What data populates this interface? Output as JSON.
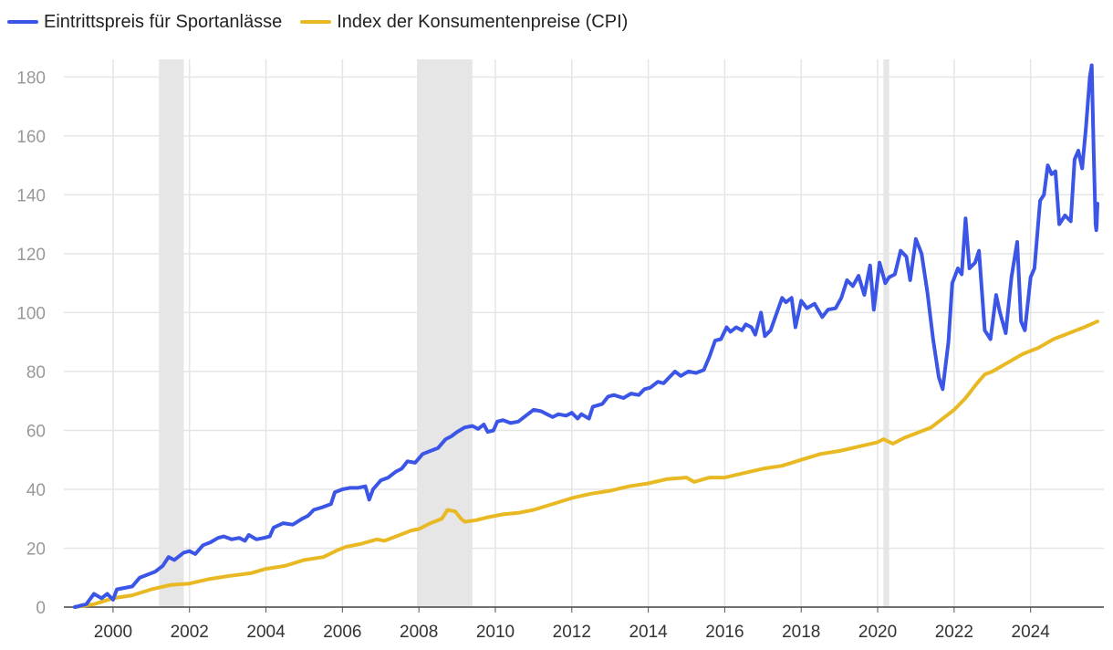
{
  "chart_data": {
    "type": "line",
    "title": "",
    "xlabel": "",
    "ylabel": "",
    "xlim": [
      1999.0,
      2025.75
    ],
    "ylim": [
      0,
      186
    ],
    "y_ticks": [
      0,
      20,
      40,
      60,
      80,
      100,
      120,
      140,
      160,
      180
    ],
    "y_tick_labels": [
      "0",
      "20",
      "40",
      "60",
      "80",
      "100",
      "120",
      "140",
      "160",
      "180"
    ],
    "x_ticks": [
      2000,
      2002,
      2004,
      2006,
      2008,
      2010,
      2012,
      2014,
      2016,
      2018,
      2020,
      2022,
      2024
    ],
    "x_tick_labels": [
      "2000",
      "2002",
      "2004",
      "2006",
      "2008",
      "2010",
      "2012",
      "2014",
      "2016",
      "2018",
      "2020",
      "2022",
      "2024"
    ],
    "grid": true,
    "legend_position": "top-left",
    "shaded_periods": [
      [
        2001.2,
        2001.85
      ],
      [
        2007.95,
        2009.4
      ],
      [
        2020.15,
        2020.3
      ]
    ],
    "series": [
      {
        "name": "Eintrittspreis für Sportanlässe",
        "color": "#3b55e6",
        "points": [
          [
            1999.0,
            0
          ],
          [
            1999.3,
            1
          ],
          [
            1999.5,
            4.5
          ],
          [
            1999.7,
            3
          ],
          [
            1999.85,
            4.5
          ],
          [
            2000.0,
            2.5
          ],
          [
            2000.1,
            6
          ],
          [
            2000.3,
            6.5
          ],
          [
            2000.5,
            7
          ],
          [
            2000.7,
            10
          ],
          [
            2000.9,
            11
          ],
          [
            2001.1,
            12
          ],
          [
            2001.3,
            14
          ],
          [
            2001.45,
            17
          ],
          [
            2001.6,
            16
          ],
          [
            2001.85,
            18.5
          ],
          [
            2002.0,
            19
          ],
          [
            2002.15,
            18
          ],
          [
            2002.35,
            21
          ],
          [
            2002.55,
            22
          ],
          [
            2002.75,
            23.5
          ],
          [
            2002.9,
            24
          ],
          [
            2003.1,
            23
          ],
          [
            2003.3,
            23.5
          ],
          [
            2003.45,
            22.5
          ],
          [
            2003.55,
            24.5
          ],
          [
            2003.75,
            23
          ],
          [
            2003.95,
            23.5
          ],
          [
            2004.1,
            24
          ],
          [
            2004.2,
            27
          ],
          [
            2004.45,
            28.5
          ],
          [
            2004.7,
            28
          ],
          [
            2004.95,
            30
          ],
          [
            2005.1,
            31
          ],
          [
            2005.25,
            33
          ],
          [
            2005.5,
            34
          ],
          [
            2005.7,
            35
          ],
          [
            2005.8,
            39
          ],
          [
            2006.0,
            40
          ],
          [
            2006.2,
            40.5
          ],
          [
            2006.4,
            40.5
          ],
          [
            2006.6,
            41
          ],
          [
            2006.7,
            36.5
          ],
          [
            2006.8,
            40
          ],
          [
            2007.0,
            43
          ],
          [
            2007.2,
            44
          ],
          [
            2007.4,
            46
          ],
          [
            2007.55,
            47
          ],
          [
            2007.7,
            49.5
          ],
          [
            2007.9,
            49
          ],
          [
            2008.1,
            52
          ],
          [
            2008.3,
            53
          ],
          [
            2008.5,
            54
          ],
          [
            2008.7,
            57
          ],
          [
            2008.85,
            58
          ],
          [
            2009.0,
            59.5
          ],
          [
            2009.2,
            61
          ],
          [
            2009.4,
            61.5
          ],
          [
            2009.55,
            60.5
          ],
          [
            2009.7,
            62
          ],
          [
            2009.8,
            59.5
          ],
          [
            2009.95,
            60
          ],
          [
            2010.05,
            63
          ],
          [
            2010.2,
            63.5
          ],
          [
            2010.4,
            62.5
          ],
          [
            2010.6,
            63
          ],
          [
            2010.8,
            65
          ],
          [
            2011.0,
            67
          ],
          [
            2011.2,
            66.5
          ],
          [
            2011.35,
            65.5
          ],
          [
            2011.5,
            64.5
          ],
          [
            2011.65,
            65.5
          ],
          [
            2011.85,
            65
          ],
          [
            2012.0,
            66
          ],
          [
            2012.15,
            64
          ],
          [
            2012.25,
            65.5
          ],
          [
            2012.45,
            64
          ],
          [
            2012.55,
            68
          ],
          [
            2012.8,
            69
          ],
          [
            2012.95,
            71.5
          ],
          [
            2013.1,
            72
          ],
          [
            2013.35,
            71
          ],
          [
            2013.55,
            72.5
          ],
          [
            2013.75,
            72
          ],
          [
            2013.9,
            74
          ],
          [
            2014.05,
            74.5
          ],
          [
            2014.25,
            76.5
          ],
          [
            2014.4,
            76
          ],
          [
            2014.55,
            78
          ],
          [
            2014.7,
            80
          ],
          [
            2014.85,
            78.5
          ],
          [
            2015.05,
            80
          ],
          [
            2015.25,
            79.5
          ],
          [
            2015.45,
            80.5
          ],
          [
            2015.6,
            85
          ],
          [
            2015.75,
            90.5
          ],
          [
            2015.9,
            91
          ],
          [
            2016.05,
            95
          ],
          [
            2016.15,
            93.5
          ],
          [
            2016.3,
            95
          ],
          [
            2016.45,
            94
          ],
          [
            2016.55,
            96
          ],
          [
            2016.7,
            95
          ],
          [
            2016.8,
            92.5
          ],
          [
            2016.95,
            100
          ],
          [
            2017.05,
            92
          ],
          [
            2017.2,
            94
          ],
          [
            2017.35,
            99.5
          ],
          [
            2017.5,
            105
          ],
          [
            2017.6,
            103.5
          ],
          [
            2017.75,
            105
          ],
          [
            2017.85,
            95
          ],
          [
            2018.0,
            104
          ],
          [
            2018.15,
            101.5
          ],
          [
            2018.35,
            103
          ],
          [
            2018.55,
            98.5
          ],
          [
            2018.7,
            101
          ],
          [
            2018.9,
            101.5
          ],
          [
            2019.05,
            105
          ],
          [
            2019.2,
            111
          ],
          [
            2019.35,
            109
          ],
          [
            2019.5,
            112.5
          ],
          [
            2019.65,
            106
          ],
          [
            2019.8,
            116
          ],
          [
            2019.9,
            101
          ],
          [
            2020.05,
            117
          ],
          [
            2020.2,
            110
          ],
          [
            2020.3,
            112
          ],
          [
            2020.45,
            113
          ],
          [
            2020.6,
            121
          ],
          [
            2020.75,
            119
          ],
          [
            2020.85,
            111
          ],
          [
            2021.0,
            125
          ],
          [
            2021.15,
            120
          ],
          [
            2021.3,
            107
          ],
          [
            2021.45,
            91
          ],
          [
            2021.6,
            78
          ],
          [
            2021.7,
            74
          ],
          [
            2021.85,
            90
          ],
          [
            2021.95,
            110
          ],
          [
            2022.1,
            115
          ],
          [
            2022.2,
            113
          ],
          [
            2022.3,
            132
          ],
          [
            2022.4,
            115
          ],
          [
            2022.55,
            117
          ],
          [
            2022.65,
            121
          ],
          [
            2022.8,
            94
          ],
          [
            2022.95,
            91
          ],
          [
            2023.1,
            106
          ],
          [
            2023.2,
            100
          ],
          [
            2023.35,
            93
          ],
          [
            2023.5,
            112
          ],
          [
            2023.65,
            124
          ],
          [
            2023.75,
            97
          ],
          [
            2023.85,
            94
          ],
          [
            2024.0,
            112
          ],
          [
            2024.1,
            115
          ],
          [
            2024.25,
            138
          ],
          [
            2024.35,
            140
          ],
          [
            2024.45,
            150
          ],
          [
            2024.55,
            147
          ],
          [
            2024.65,
            148
          ],
          [
            2024.75,
            130
          ],
          [
            2024.9,
            133
          ],
          [
            2025.05,
            131
          ],
          [
            2025.15,
            152
          ],
          [
            2025.25,
            155
          ],
          [
            2025.35,
            149
          ],
          [
            2025.45,
            163
          ],
          [
            2025.55,
            180
          ],
          [
            2025.6,
            184
          ],
          [
            2025.65,
            155
          ],
          [
            2025.7,
            130
          ],
          [
            2025.72,
            128
          ],
          [
            2025.73,
            130
          ],
          [
            2025.74,
            134
          ],
          [
            2025.75,
            137
          ]
        ]
      },
      {
        "name": "Index der Konsumentenpreise (CPI)",
        "color": "#e8b923",
        "points": [
          [
            1999.0,
            0
          ],
          [
            1999.5,
            1
          ],
          [
            2000.0,
            3
          ],
          [
            2000.5,
            4
          ],
          [
            2001.0,
            6
          ],
          [
            2001.5,
            7.5
          ],
          [
            2002.0,
            8
          ],
          [
            2002.5,
            9.5
          ],
          [
            2003.0,
            10.5
          ],
          [
            2003.3,
            11
          ],
          [
            2003.6,
            11.5
          ],
          [
            2004.0,
            13
          ],
          [
            2004.5,
            14
          ],
          [
            2005.0,
            16
          ],
          [
            2005.5,
            17
          ],
          [
            2005.9,
            19.5
          ],
          [
            2006.1,
            20.5
          ],
          [
            2006.5,
            21.5
          ],
          [
            2006.9,
            23
          ],
          [
            2007.1,
            22.5
          ],
          [
            2007.5,
            24.5
          ],
          [
            2007.8,
            26
          ],
          [
            2008.0,
            26.5
          ],
          [
            2008.3,
            28.5
          ],
          [
            2008.6,
            30
          ],
          [
            2008.75,
            33
          ],
          [
            2008.95,
            32.5
          ],
          [
            2009.1,
            30
          ],
          [
            2009.2,
            29
          ],
          [
            2009.5,
            29.5
          ],
          [
            2009.8,
            30.5
          ],
          [
            2010.2,
            31.5
          ],
          [
            2010.6,
            32
          ],
          [
            2011.0,
            33
          ],
          [
            2011.5,
            35
          ],
          [
            2012.0,
            37
          ],
          [
            2012.5,
            38.5
          ],
          [
            2013.0,
            39.5
          ],
          [
            2013.5,
            41
          ],
          [
            2014.0,
            42
          ],
          [
            2014.5,
            43.5
          ],
          [
            2015.0,
            44
          ],
          [
            2015.2,
            42.5
          ],
          [
            2015.6,
            44
          ],
          [
            2016.0,
            44
          ],
          [
            2016.5,
            45.5
          ],
          [
            2017.0,
            47
          ],
          [
            2017.5,
            48
          ],
          [
            2018.0,
            50
          ],
          [
            2018.5,
            52
          ],
          [
            2019.0,
            53
          ],
          [
            2019.5,
            54.5
          ],
          [
            2020.0,
            56
          ],
          [
            2020.15,
            57
          ],
          [
            2020.4,
            55.5
          ],
          [
            2020.7,
            57.5
          ],
          [
            2021.0,
            59
          ],
          [
            2021.4,
            61
          ],
          [
            2021.8,
            65
          ],
          [
            2022.0,
            67
          ],
          [
            2022.3,
            71
          ],
          [
            2022.6,
            76
          ],
          [
            2022.8,
            79
          ],
          [
            2023.0,
            80
          ],
          [
            2023.4,
            83
          ],
          [
            2023.8,
            86
          ],
          [
            2024.2,
            88
          ],
          [
            2024.6,
            91
          ],
          [
            2025.0,
            93
          ],
          [
            2025.4,
            95
          ],
          [
            2025.75,
            97
          ]
        ]
      }
    ]
  }
}
